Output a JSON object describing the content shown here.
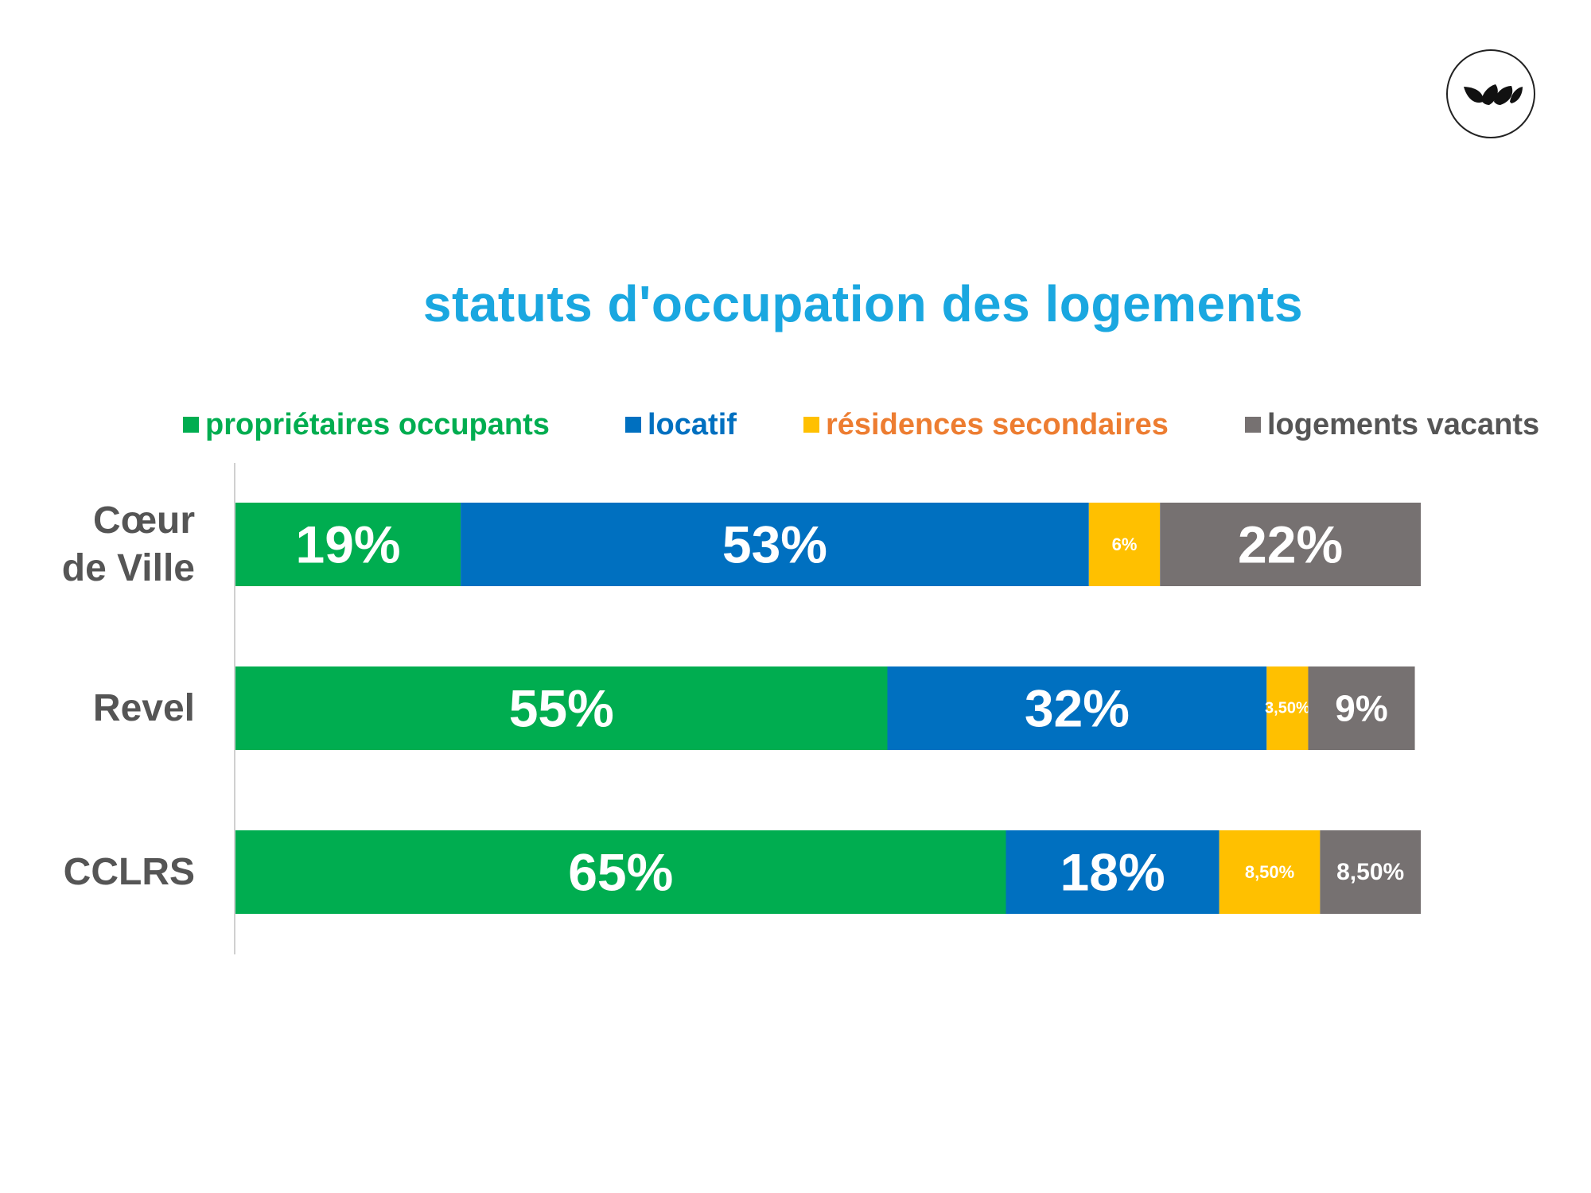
{
  "logo": {
    "icon": "leaf-petals-logo"
  },
  "chart_data": {
    "type": "bar",
    "orientation": "horizontal",
    "stacked": true,
    "title": "statuts d'occupation des logements",
    "legend": {
      "placement": "top"
    },
    "categories": [
      "Cœur\nde Ville",
      "Revel",
      "CCLRS"
    ],
    "series": [
      {
        "name": "propriétaires occupants",
        "color": "#00ad50",
        "legend_text_color": "#00ad50",
        "values": [
          19,
          55,
          65
        ],
        "labels": [
          "19%",
          "55%",
          "65%"
        ]
      },
      {
        "name": "locatif",
        "color": "#0070c0",
        "legend_text_color": "#0070c0",
        "values": [
          53,
          32,
          18
        ],
        "labels": [
          "53%",
          "32%",
          "18%"
        ]
      },
      {
        "name": "résidences secondaires",
        "color": "#ffc000",
        "legend_text_color": "#ed7d31",
        "values": [
          6,
          3.5,
          8.5
        ],
        "labels": [
          "6%",
          "3,50%",
          "8,50%"
        ]
      },
      {
        "name": "logements vacants",
        "color": "#767171",
        "legend_text_color": "#555555",
        "values": [
          22,
          9,
          8.5
        ],
        "labels": [
          "22%",
          "9%",
          "8,50%"
        ]
      }
    ],
    "grid": false,
    "xaxis_visible": false
  }
}
